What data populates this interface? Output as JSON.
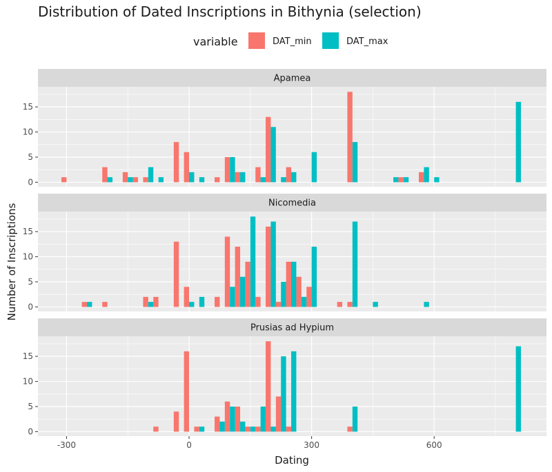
{
  "chart_data": {
    "type": "bar",
    "title": "Distribution of Dated Inscriptions in Bithynia (selection)",
    "xlabel": "Dating",
    "ylabel": "Number of Inscriptions",
    "xlim": [
      -370,
      875
    ],
    "ylim": [
      -0.9,
      19.0
    ],
    "x_ticks": [
      -300,
      0,
      300,
      600
    ],
    "y_ticks": [
      0,
      5,
      10,
      15
    ],
    "bin_width": 25,
    "grid": true,
    "legend": {
      "title": "variable",
      "position": "top",
      "entries": [
        {
          "name": "DAT_min",
          "color": "#F8766D"
        },
        {
          "name": "DAT_max",
          "color": "#00BFC4"
        }
      ]
    },
    "facets": [
      {
        "name": "Apamea",
        "series": [
          {
            "name": "DAT_min",
            "x": [
              -300,
              -200,
              -150,
              -125,
              -100,
              -25,
              0,
              75,
              100,
              125,
              175,
              200,
              250,
              400,
              525,
              575
            ],
            "values": [
              1,
              3,
              2,
              1,
              1,
              8,
              6,
              1,
              5,
              2,
              3,
              13,
              3,
              18,
              1,
              2
            ]
          },
          {
            "name": "DAT_max",
            "x": [
              -200,
              -150,
              -100,
              -75,
              0,
              25,
              100,
              125,
              175,
              200,
              225,
              250,
              300,
              400,
              500,
              525,
              575,
              600,
              800
            ],
            "values": [
              1,
              1,
              3,
              1,
              2,
              1,
              5,
              2,
              1,
              11,
              1,
              2,
              6,
              8,
              1,
              1,
              3,
              1,
              16
            ]
          }
        ]
      },
      {
        "name": "Nicomedia",
        "series": [
          {
            "name": "DAT_min",
            "x": [
              -250,
              -200,
              -100,
              -75,
              -25,
              0,
              75,
              100,
              125,
              150,
              175,
              200,
              225,
              250,
              275,
              300,
              375,
              400
            ],
            "values": [
              1,
              1,
              2,
              2,
              13,
              4,
              2,
              14,
              12,
              9,
              2,
              16,
              1,
              9,
              6,
              4,
              1,
              1
            ]
          },
          {
            "name": "DAT_max",
            "x": [
              -250,
              -100,
              0,
              25,
              100,
              125,
              150,
              200,
              225,
              250,
              275,
              300,
              400,
              450,
              575
            ],
            "values": [
              1,
              1,
              1,
              2,
              4,
              6,
              18,
              17,
              5,
              9,
              2,
              12,
              17,
              1,
              1
            ]
          }
        ]
      },
      {
        "name": "Prusias ad Hypium",
        "series": [
          {
            "name": "DAT_min",
            "x": [
              -75,
              -25,
              0,
              25,
              75,
              100,
              125,
              150,
              175,
              200,
              225,
              250,
              400
            ],
            "values": [
              1,
              4,
              16,
              1,
              3,
              6,
              5,
              1,
              1,
              18,
              7,
              1,
              1
            ]
          },
          {
            "name": "DAT_max",
            "x": [
              25,
              75,
              100,
              125,
              150,
              175,
              200,
              225,
              250,
              400,
              800
            ],
            "values": [
              1,
              2,
              5,
              2,
              1,
              5,
              1,
              15,
              16,
              5,
              17
            ]
          }
        ]
      }
    ]
  }
}
